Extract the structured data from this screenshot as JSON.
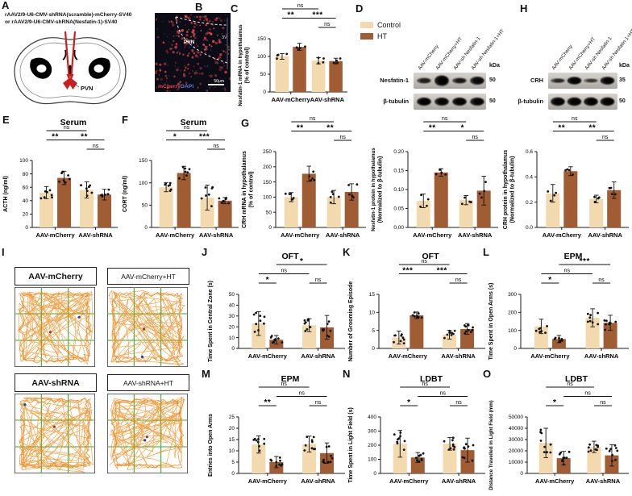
{
  "panel_labels": {
    "A": "A",
    "B": "B",
    "C": "C",
    "D": "D",
    "E": "E",
    "F": "F",
    "G": "G",
    "H": "H",
    "I": "I",
    "J": "J",
    "K": "K",
    "L": "L",
    "M": "M",
    "N": "N",
    "O": "O"
  },
  "colors": {
    "control_fill": "#F2DAAE",
    "ht_fill": "#A05C33",
    "trace_orange": "#ED8B1E",
    "grid_green": "#2FB12F",
    "mcherry_red": "#E04545",
    "dapi_blue": "#5B79D6",
    "needle_red": "#C9201D"
  },
  "panel_A": {
    "construct_line1": "rAAV2/9-U6-CMV-shRNA(scramble)-mCherry-SV40",
    "construct_line2": "or  rAAV2/9-U6-CMV-shRNA(Nesfatin-1)-SV40",
    "target_label": "PVN"
  },
  "panel_B": {
    "region_label": "PVN",
    "ventricle_label": "3V",
    "stain_red": "mCherry",
    "stain_blue": "DAPI",
    "scale_bar": "50μm"
  },
  "legend": {
    "items": [
      {
        "label": "Control",
        "color_key": "control_fill"
      },
      {
        "label": "HT",
        "color_key": "ht_fill"
      }
    ]
  },
  "blot_D": {
    "lanes": [
      "AAV-mCherry",
      "AAV-mCherry+HT",
      "AAV-sh Nesfatin-1",
      "AAV-sh Nesfatin-1+HT"
    ],
    "kda_header": "kDa",
    "rows": [
      {
        "protein": "Nesfatin-1",
        "kda": "50"
      },
      {
        "protein": "β-tubulin",
        "kda": "50"
      }
    ]
  },
  "blot_H": {
    "lanes": [
      "AAV-mCherry",
      "AAV-mCherry+HT",
      "AAV-sh Nesfatin-1",
      "AAV-sh Nesfatin-1+HT"
    ],
    "kda_header": "kDa",
    "rows": [
      {
        "protein": "CRH",
        "kda": "35"
      },
      {
        "protein": "β-tubulin",
        "kda": "50"
      }
    ]
  },
  "panel_I": {
    "labels": [
      "AAV-mCherry",
      "AAV-mCherry+HT",
      "AAV-shRNA",
      "AAV-shRNA+HT"
    ]
  },
  "chart_data": [
    {
      "id": "C",
      "panel": "C",
      "type": "bar",
      "title": "",
      "ylabel": [
        "Nesfatin-1 mRNA in hypothalamus",
        "(% of control)"
      ],
      "ylim": [
        0,
        150
      ],
      "yticks": [
        "0",
        "50",
        "100",
        "150"
      ],
      "categories": [
        "AAV-mCherry",
        "AAV-shRNA"
      ],
      "series": [
        {
          "name": "Control",
          "values": [
            100,
            88
          ],
          "sd": [
            8,
            9
          ]
        },
        {
          "name": "HT",
          "values": [
            127,
            87
          ],
          "sd": [
            10,
            8
          ]
        }
      ],
      "points_per_bar": 4,
      "significance": [
        {
          "a": 0,
          "b": 2,
          "label": "ns",
          "level": 0
        },
        {
          "a": 0,
          "b": 1,
          "label": "**",
          "level": 1
        },
        {
          "a": 1,
          "b": 3,
          "label": "***",
          "level": 1
        },
        {
          "a": 2,
          "b": 3,
          "label": "ns",
          "level": 2
        }
      ]
    },
    {
      "id": "E",
      "panel": "E",
      "type": "bar",
      "title": "Serum",
      "ylabel": [
        "ACTH (ng/ml)"
      ],
      "ylim": [
        0,
        100
      ],
      "yticks": [
        "0",
        "20",
        "40",
        "60",
        "80",
        "100"
      ],
      "categories": [
        "AAV-mCherry",
        "AAV-shRNA"
      ],
      "series": [
        {
          "name": "Control",
          "values": [
            52,
            56
          ],
          "sd": [
            9,
            12
          ]
        },
        {
          "name": "HT",
          "values": [
            74,
            49
          ],
          "sd": [
            10,
            8
          ]
        }
      ],
      "points_per_bar": 7,
      "significance": [
        {
          "a": 0,
          "b": 2,
          "label": "ns",
          "level": 0
        },
        {
          "a": 0,
          "b": 1,
          "label": "**",
          "level": 1
        },
        {
          "a": 1,
          "b": 3,
          "label": "**",
          "level": 1
        },
        {
          "a": 2,
          "b": 3,
          "label": "ns",
          "level": 2
        }
      ]
    },
    {
      "id": "F",
      "panel": "F",
      "type": "bar",
      "title": "Serum",
      "ylabel": [
        "CORT (ng/ml)"
      ],
      "ylim": [
        0,
        150
      ],
      "yticks": [
        "0",
        "50",
        "100",
        "150"
      ],
      "categories": [
        "AAV-mCherry",
        "AAV-shRNA"
      ],
      "series": [
        {
          "name": "Control",
          "values": [
            90,
            67
          ],
          "sd": [
            10,
            28
          ]
        },
        {
          "name": "HT",
          "values": [
            122,
            60
          ],
          "sd": [
            15,
            7
          ]
        }
      ],
      "points_per_bar": 7,
      "significance": [
        {
          "a": 0,
          "b": 2,
          "label": "ns",
          "level": 0
        },
        {
          "a": 0,
          "b": 1,
          "label": "*",
          "level": 1
        },
        {
          "a": 1,
          "b": 3,
          "label": "***",
          "level": 1
        },
        {
          "a": 2,
          "b": 3,
          "label": "ns",
          "level": 2
        }
      ]
    },
    {
      "id": "G",
      "panel": "G",
      "type": "bar",
      "title": "",
      "ylabel": [
        "CRH mRNA in hypothalamus",
        "(% of control)"
      ],
      "ylim": [
        0,
        250
      ],
      "yticks": [
        "0",
        "50",
        "100",
        "150",
        "200",
        "250"
      ],
      "categories": [
        "AAV-mCherry",
        "AAV-shRNA"
      ],
      "series": [
        {
          "name": "Control",
          "values": [
            100,
            100
          ],
          "sd": [
            15,
            22
          ]
        },
        {
          "name": "HT",
          "values": [
            177,
            117
          ],
          "sd": [
            25,
            27
          ]
        }
      ],
      "points_per_bar": 5,
      "significance": [
        {
          "a": 0,
          "b": 2,
          "label": "ns",
          "level": 0
        },
        {
          "a": 0,
          "b": 1,
          "label": "**",
          "level": 1
        },
        {
          "a": 1,
          "b": 3,
          "label": "**",
          "level": 1
        },
        {
          "a": 2,
          "b": 3,
          "label": "ns",
          "level": 2
        }
      ]
    },
    {
      "id": "D2",
      "panel": "",
      "type": "bar",
      "title": "",
      "ylabel": [
        "Nesfatin-1 protein in hypothalamus",
        "(Normalized to β-tubulin)"
      ],
      "ylim": [
        0,
        0.2
      ],
      "yticks": [
        "0.00",
        "0.05",
        "0.10",
        "0.15",
        "0.20"
      ],
      "categories": [
        "AAV-mCherry",
        "AAV-shRNA"
      ],
      "series": [
        {
          "name": "Control",
          "values": [
            0.07,
            0.072
          ],
          "sd": [
            0.018,
            0.012
          ]
        },
        {
          "name": "HT",
          "values": [
            0.145,
            0.097
          ],
          "sd": [
            0.01,
            0.038
          ]
        }
      ],
      "points_per_bar": 4,
      "significance": [
        {
          "a": 0,
          "b": 2,
          "label": "ns",
          "level": 0
        },
        {
          "a": 0,
          "b": 1,
          "label": "**",
          "level": 1
        },
        {
          "a": 1,
          "b": 3,
          "label": "*",
          "level": 1
        },
        {
          "a": 2,
          "b": 3,
          "label": "ns",
          "level": 2
        }
      ]
    },
    {
      "id": "H2",
      "panel": "",
      "type": "bar",
      "title": "",
      "ylabel": [
        "CRH protein in hypothalamus",
        "(Normalized to β-tubulin)"
      ],
      "ylim": [
        0,
        0.6
      ],
      "yticks": [
        "0.0",
        "0.2",
        "0.4",
        "0.6"
      ],
      "categories": [
        "AAV-mCherry",
        "AAV-shRNA"
      ],
      "series": [
        {
          "name": "Control",
          "values": [
            0.27,
            0.225
          ],
          "sd": [
            0.07,
            0.03
          ]
        },
        {
          "name": "HT",
          "values": [
            0.445,
            0.295
          ],
          "sd": [
            0.035,
            0.065
          ]
        }
      ],
      "points_per_bar": 4,
      "significance": [
        {
          "a": 0,
          "b": 2,
          "label": "ns",
          "level": 0
        },
        {
          "a": 0,
          "b": 1,
          "label": "**",
          "level": 1
        },
        {
          "a": 1,
          "b": 3,
          "label": "**",
          "level": 1
        },
        {
          "a": 2,
          "b": 3,
          "label": "ns",
          "level": 2
        }
      ]
    },
    {
      "id": "J",
      "panel": "J",
      "type": "bar",
      "title": "OFT",
      "ylabel": [
        "Time Spent in Central Zone (s)"
      ],
      "ylim": [
        0,
        50
      ],
      "yticks": [
        "0",
        "10",
        "20",
        "30",
        "40",
        "50"
      ],
      "categories": [
        "AAV-mCherry",
        "AAV-shRNA"
      ],
      "series": [
        {
          "name": "Control",
          "values": [
            23,
            21.5
          ],
          "sd": [
            11,
            6
          ]
        },
        {
          "name": "HT",
          "values": [
            8,
            19.5
          ],
          "sd": [
            4,
            11
          ]
        }
      ],
      "points_per_bar": 9,
      "significance": [
        {
          "a": 1,
          "b": 3,
          "label": "*",
          "level": 0
        },
        {
          "a": 0,
          "b": 2,
          "label": "ns",
          "level": 1
        },
        {
          "a": 0,
          "b": 1,
          "label": "*",
          "level": 2
        },
        {
          "a": 2,
          "b": 3,
          "label": "ns",
          "level": 2
        }
      ]
    },
    {
      "id": "K",
      "panel": "K",
      "type": "bar",
      "title": "OFT",
      "ylabel": [
        "Number of Grooming Episode"
      ],
      "ylim": [
        0,
        15
      ],
      "yticks": [
        "0",
        "5",
        "10",
        "15"
      ],
      "categories": [
        "AAV-mCherry",
        "AAV-shRNA"
      ],
      "series": [
        {
          "name": "Control",
          "values": [
            3,
            3.8
          ],
          "sd": [
            1.8,
            1.2
          ]
        },
        {
          "name": "HT",
          "values": [
            9.2,
            5.4
          ],
          "sd": [
            0.9,
            1.5
          ]
        }
      ],
      "points_per_bar": 9,
      "significance": [
        {
          "a": 0,
          "b": 2,
          "label": "ns",
          "level": 0
        },
        {
          "a": 0,
          "b": 1,
          "label": "***",
          "level": 1
        },
        {
          "a": 1,
          "b": 3,
          "label": "***",
          "level": 1
        },
        {
          "a": 2,
          "b": 3,
          "label": "ns",
          "level": 2
        }
      ]
    },
    {
      "id": "L",
      "panel": "L",
      "type": "bar",
      "title": "EPM",
      "ylabel": [
        "Time Spent in Open Arms (s)"
      ],
      "ylim": [
        0,
        300
      ],
      "yticks": [
        "0",
        "100",
        "200",
        "300"
      ],
      "categories": [
        "AAV-mCherry",
        "AAV-shRNA"
      ],
      "series": [
        {
          "name": "Control",
          "values": [
            122,
            170
          ],
          "sd": [
            40,
            50
          ]
        },
        {
          "name": "HT",
          "values": [
            52,
            142
          ],
          "sd": [
            20,
            42
          ]
        }
      ],
      "points_per_bar": 8,
      "significance": [
        {
          "a": 1,
          "b": 3,
          "label": "***",
          "level": 0
        },
        {
          "a": 0,
          "b": 2,
          "label": "ns",
          "level": 1
        },
        {
          "a": 0,
          "b": 1,
          "label": "*",
          "level": 2
        },
        {
          "a": 2,
          "b": 3,
          "label": "ns",
          "level": 2
        }
      ]
    },
    {
      "id": "M",
      "panel": "M",
      "type": "bar",
      "title": "EPM",
      "ylabel": [
        "Entries into Open Arms"
      ],
      "ylim": [
        0,
        25
      ],
      "yticks": [
        "0",
        "5",
        "10",
        "15",
        "20",
        "25"
      ],
      "categories": [
        "AAV-mCherry",
        "AAV-shRNA"
      ],
      "series": [
        {
          "name": "Control",
          "values": [
            12.8,
            13
          ],
          "sd": [
            3.8,
            3.5
          ]
        },
        {
          "name": "HT",
          "values": [
            5,
            9
          ],
          "sd": [
            2.5,
            4.5
          ]
        }
      ],
      "points_per_bar": 9,
      "significance": [
        {
          "a": 0,
          "b": 2,
          "label": "ns",
          "level": 0
        },
        {
          "a": 1,
          "b": 3,
          "label": "ns",
          "level": 1
        },
        {
          "a": 0,
          "b": 1,
          "label": "**",
          "level": 2
        },
        {
          "a": 2,
          "b": 3,
          "label": "ns",
          "level": 2
        }
      ]
    },
    {
      "id": "N",
      "panel": "N",
      "type": "bar",
      "title": "LDBT",
      "ylabel": [
        "Time Spent in Light Field (s)"
      ],
      "ylim": [
        0,
        400
      ],
      "yticks": [
        "0",
        "100",
        "200",
        "300",
        "400"
      ],
      "categories": [
        "AAV-mCherry",
        "AAV-shRNA"
      ],
      "series": [
        {
          "name": "Control",
          "values": [
            210,
            210
          ],
          "sd": [
            95,
            45
          ]
        },
        {
          "name": "HT",
          "values": [
            113,
            165
          ],
          "sd": [
            35,
            85
          ]
        }
      ],
      "points_per_bar": 9,
      "significance": [
        {
          "a": 0,
          "b": 2,
          "label": "ns",
          "level": 0
        },
        {
          "a": 1,
          "b": 3,
          "label": "ns",
          "level": 1
        },
        {
          "a": 0,
          "b": 1,
          "label": "*",
          "level": 2
        },
        {
          "a": 2,
          "b": 3,
          "label": "ns",
          "level": 2
        }
      ]
    },
    {
      "id": "O",
      "panel": "O",
      "type": "bar",
      "title": "LDBT",
      "ylabel": [
        "Distance Travelled in Light Field (mm)"
      ],
      "ylim": [
        0,
        50000
      ],
      "yticks": [
        "0",
        "10000",
        "20000",
        "30000",
        "40000",
        "50000"
      ],
      "categories": [
        "AAV-mCherry",
        "AAV-shRNA"
      ],
      "series": [
        {
          "name": "Control",
          "values": [
            27000,
            23500
          ],
          "sd": [
            13000,
            5000
          ]
        },
        {
          "name": "HT",
          "values": [
            13500,
            16000
          ],
          "sd": [
            6000,
            9500
          ]
        }
      ],
      "points_per_bar": 9,
      "significance": [
        {
          "a": 0,
          "b": 2,
          "label": "ns",
          "level": 0
        },
        {
          "a": 1,
          "b": 3,
          "label": "ns",
          "level": 1
        },
        {
          "a": 0,
          "b": 1,
          "label": "*",
          "level": 2
        },
        {
          "a": 2,
          "b": 3,
          "label": "ns",
          "level": 2
        }
      ]
    }
  ]
}
